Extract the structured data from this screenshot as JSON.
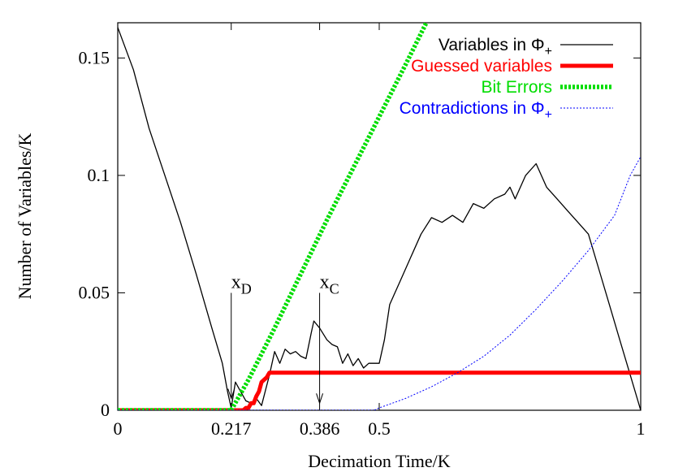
{
  "chart_data": {
    "type": "line",
    "xlabel": "Decimation Time/K",
    "ylabel": "Number of Variables/K",
    "xlim": [
      0,
      1
    ],
    "ylim": [
      0,
      0.165
    ],
    "x_ticks": [
      0,
      0.217,
      0.386,
      0.5,
      1
    ],
    "x_tick_labels": [
      "0",
      "0.217",
      "0.386",
      "0.5",
      "1"
    ],
    "y_ticks": [
      0,
      0.05,
      0.1,
      0.15
    ],
    "y_tick_labels": [
      "0",
      "0.05",
      "0.1",
      "0.15"
    ],
    "grid": false,
    "legend_position": "top-right",
    "series": [
      {
        "name": "Variables in Φ₊",
        "legend_main": "Variables in Φ",
        "legend_sub": "+",
        "color": "#000000",
        "style": "solid-thin",
        "x": [
          0,
          0.03,
          0.06,
          0.09,
          0.12,
          0.15,
          0.18,
          0.2,
          0.21,
          0.217,
          0.225,
          0.235,
          0.245,
          0.255,
          0.265,
          0.275,
          0.29,
          0.3,
          0.31,
          0.32,
          0.33,
          0.34,
          0.35,
          0.36,
          0.37,
          0.375,
          0.386,
          0.4,
          0.41,
          0.42,
          0.43,
          0.44,
          0.45,
          0.46,
          0.47,
          0.48,
          0.5,
          0.51,
          0.52,
          0.53,
          0.54,
          0.56,
          0.58,
          0.6,
          0.62,
          0.64,
          0.66,
          0.68,
          0.7,
          0.72,
          0.74,
          0.75,
          0.76,
          0.78,
          0.8,
          0.82,
          0.84,
          0.86,
          0.88,
          0.9,
          0.92,
          0.94,
          0.96,
          0.98,
          1.0
        ],
        "y": [
          0.163,
          0.145,
          0.12,
          0.1,
          0.08,
          0.058,
          0.035,
          0.02,
          0.008,
          0.001,
          0.012,
          0.008,
          0.004,
          0.003,
          0.005,
          0.002,
          0.015,
          0.025,
          0.02,
          0.026,
          0.024,
          0.025,
          0.023,
          0.022,
          0.033,
          0.038,
          0.035,
          0.03,
          0.028,
          0.027,
          0.02,
          0.024,
          0.019,
          0.022,
          0.018,
          0.02,
          0.02,
          0.03,
          0.045,
          0.05,
          0.055,
          0.065,
          0.075,
          0.082,
          0.08,
          0.083,
          0.08,
          0.088,
          0.086,
          0.09,
          0.092,
          0.095,
          0.09,
          0.1,
          0.105,
          0.095,
          0.09,
          0.085,
          0.08,
          0.075,
          0.06,
          0.045,
          0.03,
          0.015,
          0.0
        ]
      },
      {
        "name": "Guessed variables",
        "color": "#ff0000",
        "style": "solid-thick",
        "x": [
          0,
          0.24,
          0.245,
          0.25,
          0.255,
          0.26,
          0.265,
          0.27,
          0.275,
          0.28,
          0.285,
          0.29,
          1.0
        ],
        "y": [
          0,
          0,
          0.001,
          0.001,
          0.003,
          0.003,
          0.006,
          0.008,
          0.012,
          0.013,
          0.014,
          0.016,
          0.016
        ]
      },
      {
        "name": "Bit Errors",
        "color": "#00dd00",
        "style": "dotted-thick",
        "x": [
          0,
          0.217,
          0.25,
          0.3,
          0.35,
          0.4,
          0.45,
          0.5,
          0.55,
          0.59
        ],
        "y": [
          0,
          0,
          0.013,
          0.035,
          0.058,
          0.081,
          0.103,
          0.125,
          0.147,
          0.165
        ]
      },
      {
        "name": "Contradictions in Φ₊",
        "legend_main": "Contradictions in Φ",
        "legend_sub": "+",
        "color": "#0000ff",
        "style": "dotted-thin",
        "x": [
          0,
          0.49,
          0.5,
          0.55,
          0.6,
          0.65,
          0.7,
          0.75,
          0.8,
          0.85,
          0.9,
          0.95,
          0.98,
          1.0
        ],
        "y": [
          0,
          0,
          0.001,
          0.005,
          0.01,
          0.016,
          0.023,
          0.032,
          0.043,
          0.055,
          0.068,
          0.083,
          0.1,
          0.108
        ]
      }
    ],
    "annotations": [
      {
        "label_main": "x",
        "label_sub": "D",
        "x": 0.217,
        "y_from": 0.05,
        "y_to": 0.005
      },
      {
        "label_main": "x",
        "label_sub": "C",
        "x": 0.386,
        "y_from": 0.05,
        "y_to": 0.003
      }
    ]
  }
}
